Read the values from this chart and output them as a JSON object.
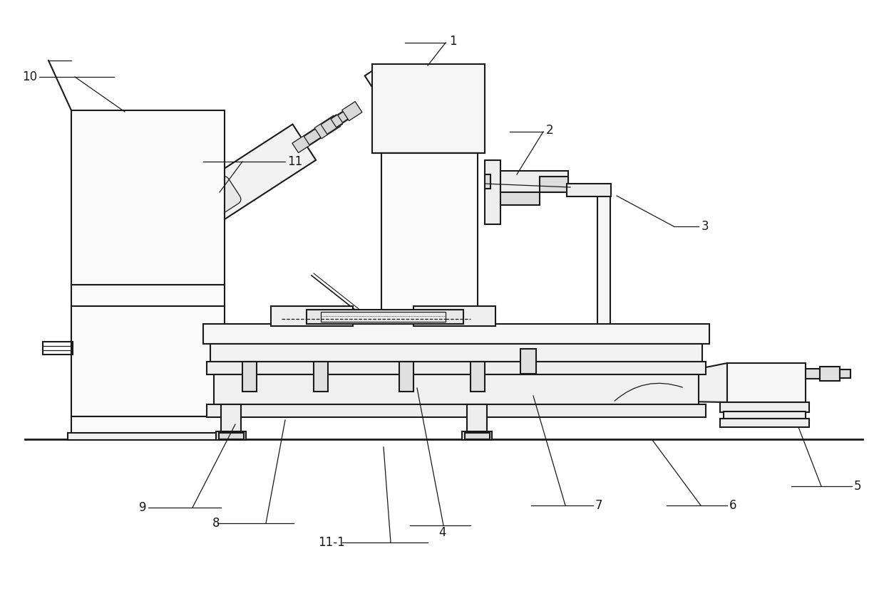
{
  "bg_color": "#ffffff",
  "line_color": "#1a1a1a",
  "lw": 1.5,
  "tlw": 0.9,
  "label_fs": 12
}
